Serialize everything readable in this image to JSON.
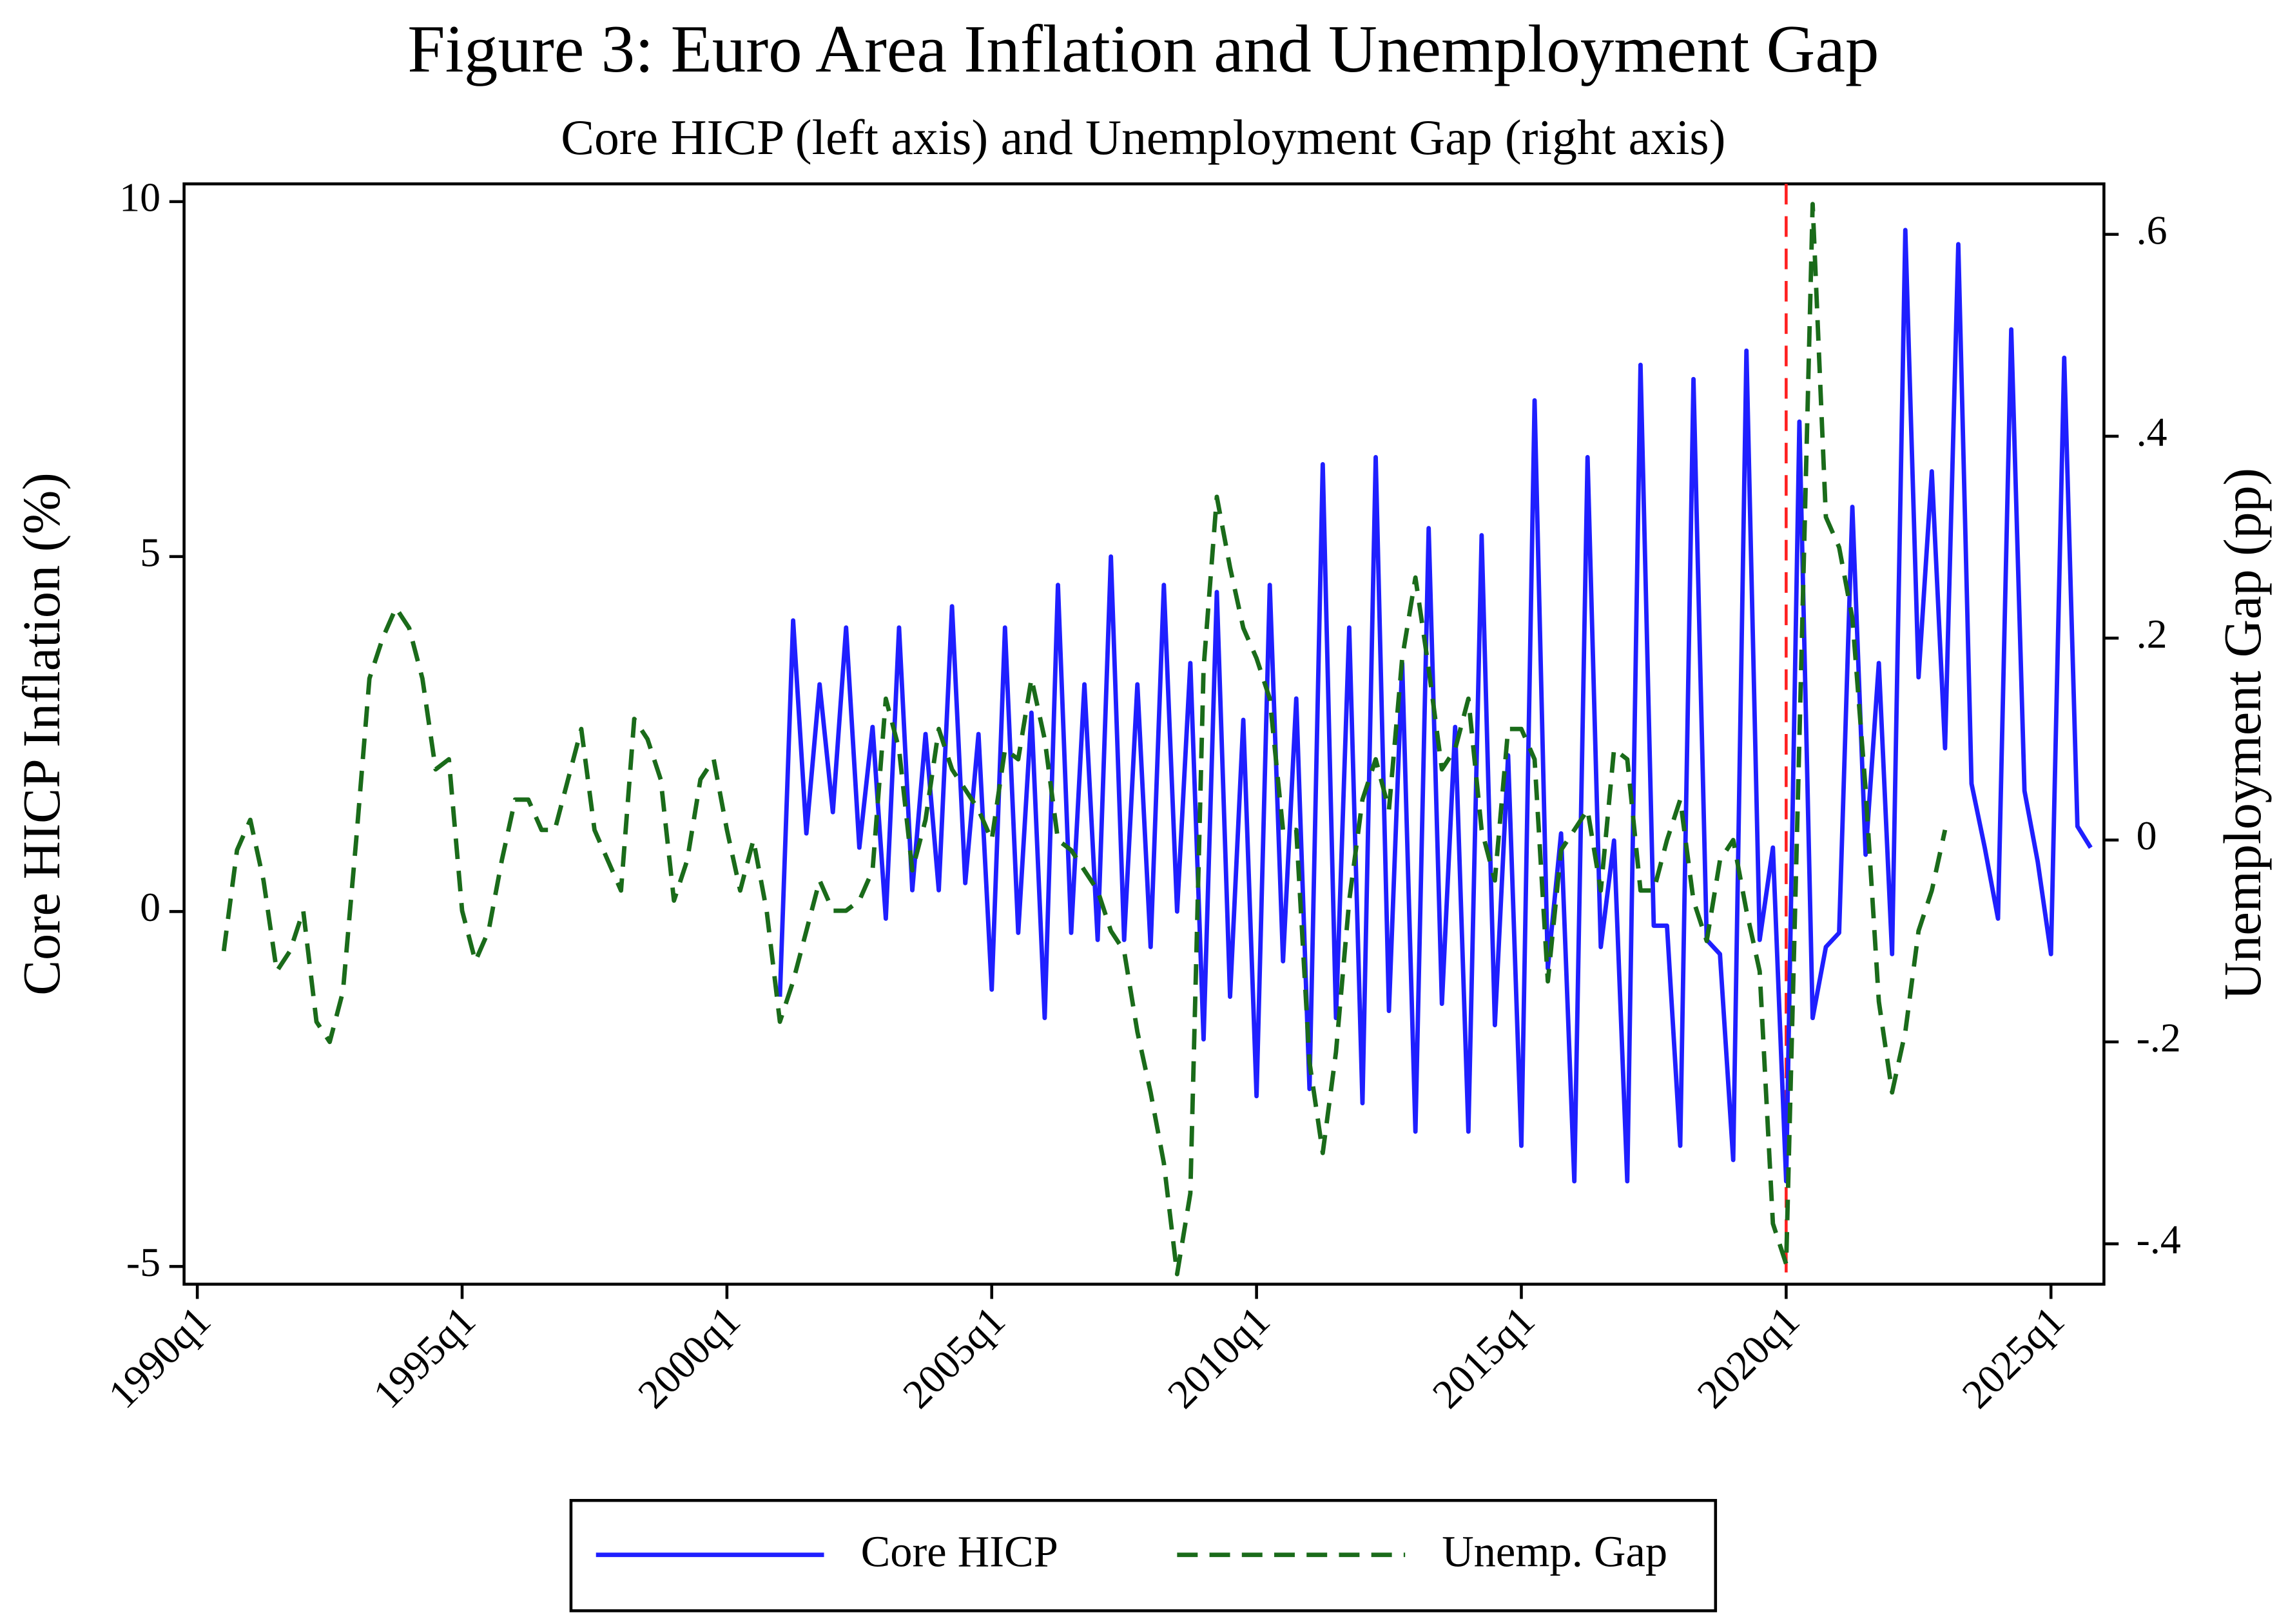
{
  "chart_data": {
    "type": "line",
    "title": "Figure 3: Euro Area Inflation and Unemployment Gap",
    "subtitle": "Core HICP (left axis) and Unemployment Gap (right axis)",
    "y_label": "Core HICP Inflation (%)",
    "y2_label": "Unemployment Gap (pp)",
    "x": [
      "1990q1",
      "1990q2",
      "1990q3",
      "1990q4",
      "1991q1",
      "1991q2",
      "1991q3",
      "1991q4",
      "1992q1",
      "1992q2",
      "1992q3",
      "1992q4",
      "1993q1",
      "1993q2",
      "1993q3",
      "1993q4",
      "1994q1",
      "1994q2",
      "1994q3",
      "1994q4",
      "1995q1",
      "1995q2",
      "1995q3",
      "1995q4",
      "1996q1",
      "1996q2",
      "1996q3",
      "1996q4",
      "1997q1",
      "1997q2",
      "1997q3",
      "1997q4",
      "1998q1",
      "1998q2",
      "1998q3",
      "1998q4",
      "1999q1",
      "1999q2",
      "1999q3",
      "1999q4",
      "2000q1",
      "2000q2",
      "2000q3",
      "2000q4",
      "2001q1",
      "2001q2",
      "2001q3",
      "2001q4",
      "2002q1",
      "2002q2",
      "2002q3",
      "2002q4",
      "2003q1",
      "2003q2",
      "2003q3",
      "2003q4",
      "2004q1",
      "2004q2",
      "2004q3",
      "2004q4",
      "2005q1",
      "2005q2",
      "2005q3",
      "2005q4",
      "2006q1",
      "2006q2",
      "2006q3",
      "2006q4",
      "2007q1",
      "2007q2",
      "2007q3",
      "2007q4",
      "2008q1",
      "2008q2",
      "2008q3",
      "2008q4",
      "2009q1",
      "2009q2",
      "2009q3",
      "2009q4",
      "2010q1",
      "2010q2",
      "2010q3",
      "2010q4",
      "2011q1",
      "2011q2",
      "2011q3",
      "2011q4",
      "2012q1",
      "2012q2",
      "2012q3",
      "2012q4",
      "2013q1",
      "2013q2",
      "2013q3",
      "2013q4",
      "2014q1",
      "2014q2",
      "2014q3",
      "2014q4",
      "2015q1",
      "2015q2",
      "2015q3",
      "2015q4",
      "2016q1",
      "2016q2",
      "2016q3",
      "2016q4",
      "2017q1",
      "2017q2",
      "2017q3",
      "2017q4",
      "2018q1",
      "2018q2",
      "2018q3",
      "2018q4",
      "2019q1",
      "2019q2",
      "2019q3",
      "2019q4",
      "2020q1",
      "2020q2",
      "2020q3",
      "2020q4",
      "2021q1",
      "2021q2",
      "2021q3",
      "2021q4",
      "2022q1",
      "2022q2",
      "2022q3",
      "2022q4",
      "2023q1",
      "2023q2",
      "2023q3",
      "2023q4",
      "2024q1",
      "2024q2",
      "2024q3",
      "2024q4",
      "2025q1",
      "2025q2",
      "2025q3",
      "2025q4"
    ],
    "series": [
      {
        "name": "Core HICP",
        "color": "#1f1fff",
        "dash": false,
        "axis": "y",
        "values": [
          null,
          null,
          null,
          null,
          null,
          null,
          null,
          null,
          null,
          null,
          null,
          null,
          null,
          null,
          null,
          null,
          null,
          null,
          null,
          null,
          null,
          null,
          null,
          null,
          null,
          null,
          null,
          null,
          null,
          null,
          null,
          null,
          null,
          null,
          null,
          null,
          null,
          null,
          null,
          null,
          null,
          null,
          null,
          null,
          -1.2,
          4.1,
          1.1,
          3.2,
          1.4,
          4.0,
          0.9,
          2.6,
          -0.1,
          4.0,
          0.3,
          2.5,
          0.3,
          4.3,
          0.4,
          2.5,
          -1.1,
          4.0,
          -0.3,
          2.8,
          -1.5,
          4.6,
          -0.3,
          3.2,
          -0.4,
          5.0,
          -0.4,
          3.2,
          -0.5,
          4.6,
          0.0,
          3.5,
          -1.8,
          4.5,
          -1.2,
          2.7,
          -2.6,
          4.6,
          -0.7,
          3.0,
          -2.5,
          6.3,
          -1.5,
          4.0,
          -2.7,
          6.4,
          -1.4,
          3.5,
          -3.1,
          5.4,
          -1.3,
          2.6,
          -3.1,
          5.3,
          -1.6,
          2.2,
          -3.3,
          7.2,
          -0.8,
          1.1,
          -3.8,
          6.4,
          -0.5,
          1.0,
          -3.8,
          7.7,
          -0.2,
          -0.2,
          -3.3,
          7.5,
          -0.4,
          -0.6,
          -3.5,
          7.9,
          -0.4,
          0.9,
          -3.8,
          6.9,
          -1.5,
          -0.5,
          -0.3,
          5.7,
          0.8,
          3.5,
          -0.6,
          9.6,
          3.3,
          6.2,
          2.3,
          9.4,
          1.8,
          0.9,
          -0.1,
          8.2,
          1.7,
          0.7,
          -0.6,
          7.8,
          1.2,
          0.9
        ]
      },
      {
        "name": "Unemp. Gap",
        "color": "#1a6b1a",
        "dash": true,
        "axis": "y2",
        "values": [
          null,
          null,
          -0.11,
          -0.01,
          0.02,
          -0.04,
          -0.13,
          -0.11,
          -0.07,
          -0.18,
          -0.2,
          -0.15,
          0.0,
          0.16,
          0.2,
          0.23,
          0.21,
          0.16,
          0.07,
          0.08,
          -0.07,
          -0.12,
          -0.09,
          -0.02,
          0.04,
          0.04,
          0.01,
          0.01,
          0.06,
          0.11,
          0.01,
          -0.02,
          -0.05,
          0.12,
          0.1,
          0.06,
          -0.06,
          -0.02,
          0.06,
          0.08,
          0.01,
          -0.05,
          0.0,
          -0.07,
          -0.18,
          -0.14,
          -0.09,
          -0.04,
          -0.07,
          -0.07,
          -0.06,
          -0.03,
          0.14,
          0.09,
          -0.03,
          0.02,
          0.11,
          0.07,
          0.05,
          0.03,
          0.0,
          0.09,
          0.08,
          0.16,
          0.1,
          0.0,
          -0.01,
          -0.03,
          -0.05,
          -0.09,
          -0.11,
          -0.19,
          -0.25,
          -0.32,
          -0.43,
          -0.35,
          0.17,
          0.34,
          0.27,
          0.21,
          0.18,
          0.14,
          0.01,
          0.01,
          -0.22,
          -0.31,
          -0.21,
          -0.06,
          0.04,
          0.08,
          0.03,
          0.18,
          0.26,
          0.17,
          0.07,
          0.09,
          0.14,
          0.01,
          -0.04,
          0.11,
          0.11,
          0.08,
          -0.14,
          -0.01,
          0.01,
          0.03,
          -0.05,
          0.09,
          0.08,
          -0.05,
          -0.05,
          0.0,
          0.04,
          -0.06,
          -0.1,
          -0.02,
          0.0,
          -0.07,
          -0.13,
          -0.38,
          -0.42,
          0.1,
          0.63,
          0.32,
          0.29,
          0.22,
          0.05,
          -0.16,
          -0.25,
          -0.19,
          -0.09,
          -0.05,
          0.01,
          null,
          null,
          null,
          null,
          null,
          null,
          null,
          null,
          null,
          null,
          null
        ]
      }
    ],
    "xlim": [
      "1989q4",
      "2026q1"
    ],
    "xticks": [
      "1990q1",
      "1995q1",
      "2000q1",
      "2005q1",
      "2010q1",
      "2015q1",
      "2020q1",
      "2025q1"
    ],
    "ylim": [
      -5.25,
      10.25
    ],
    "yticks": [
      -5,
      0,
      5,
      10
    ],
    "y2lim": [
      -0.44,
      0.65
    ],
    "y2ticks": [
      {
        "value": -0.4,
        "label": "-.4"
      },
      {
        "value": -0.2,
        "label": "-.2"
      },
      0,
      {
        "value": 0.2,
        "label": ".2"
      },
      {
        "value": 0.4,
        "label": ".4"
      },
      {
        "value": 0.6,
        "label": ".6"
      }
    ],
    "vline": "2020q1",
    "vline_color": "#ff2020",
    "legend": "bottom"
  }
}
